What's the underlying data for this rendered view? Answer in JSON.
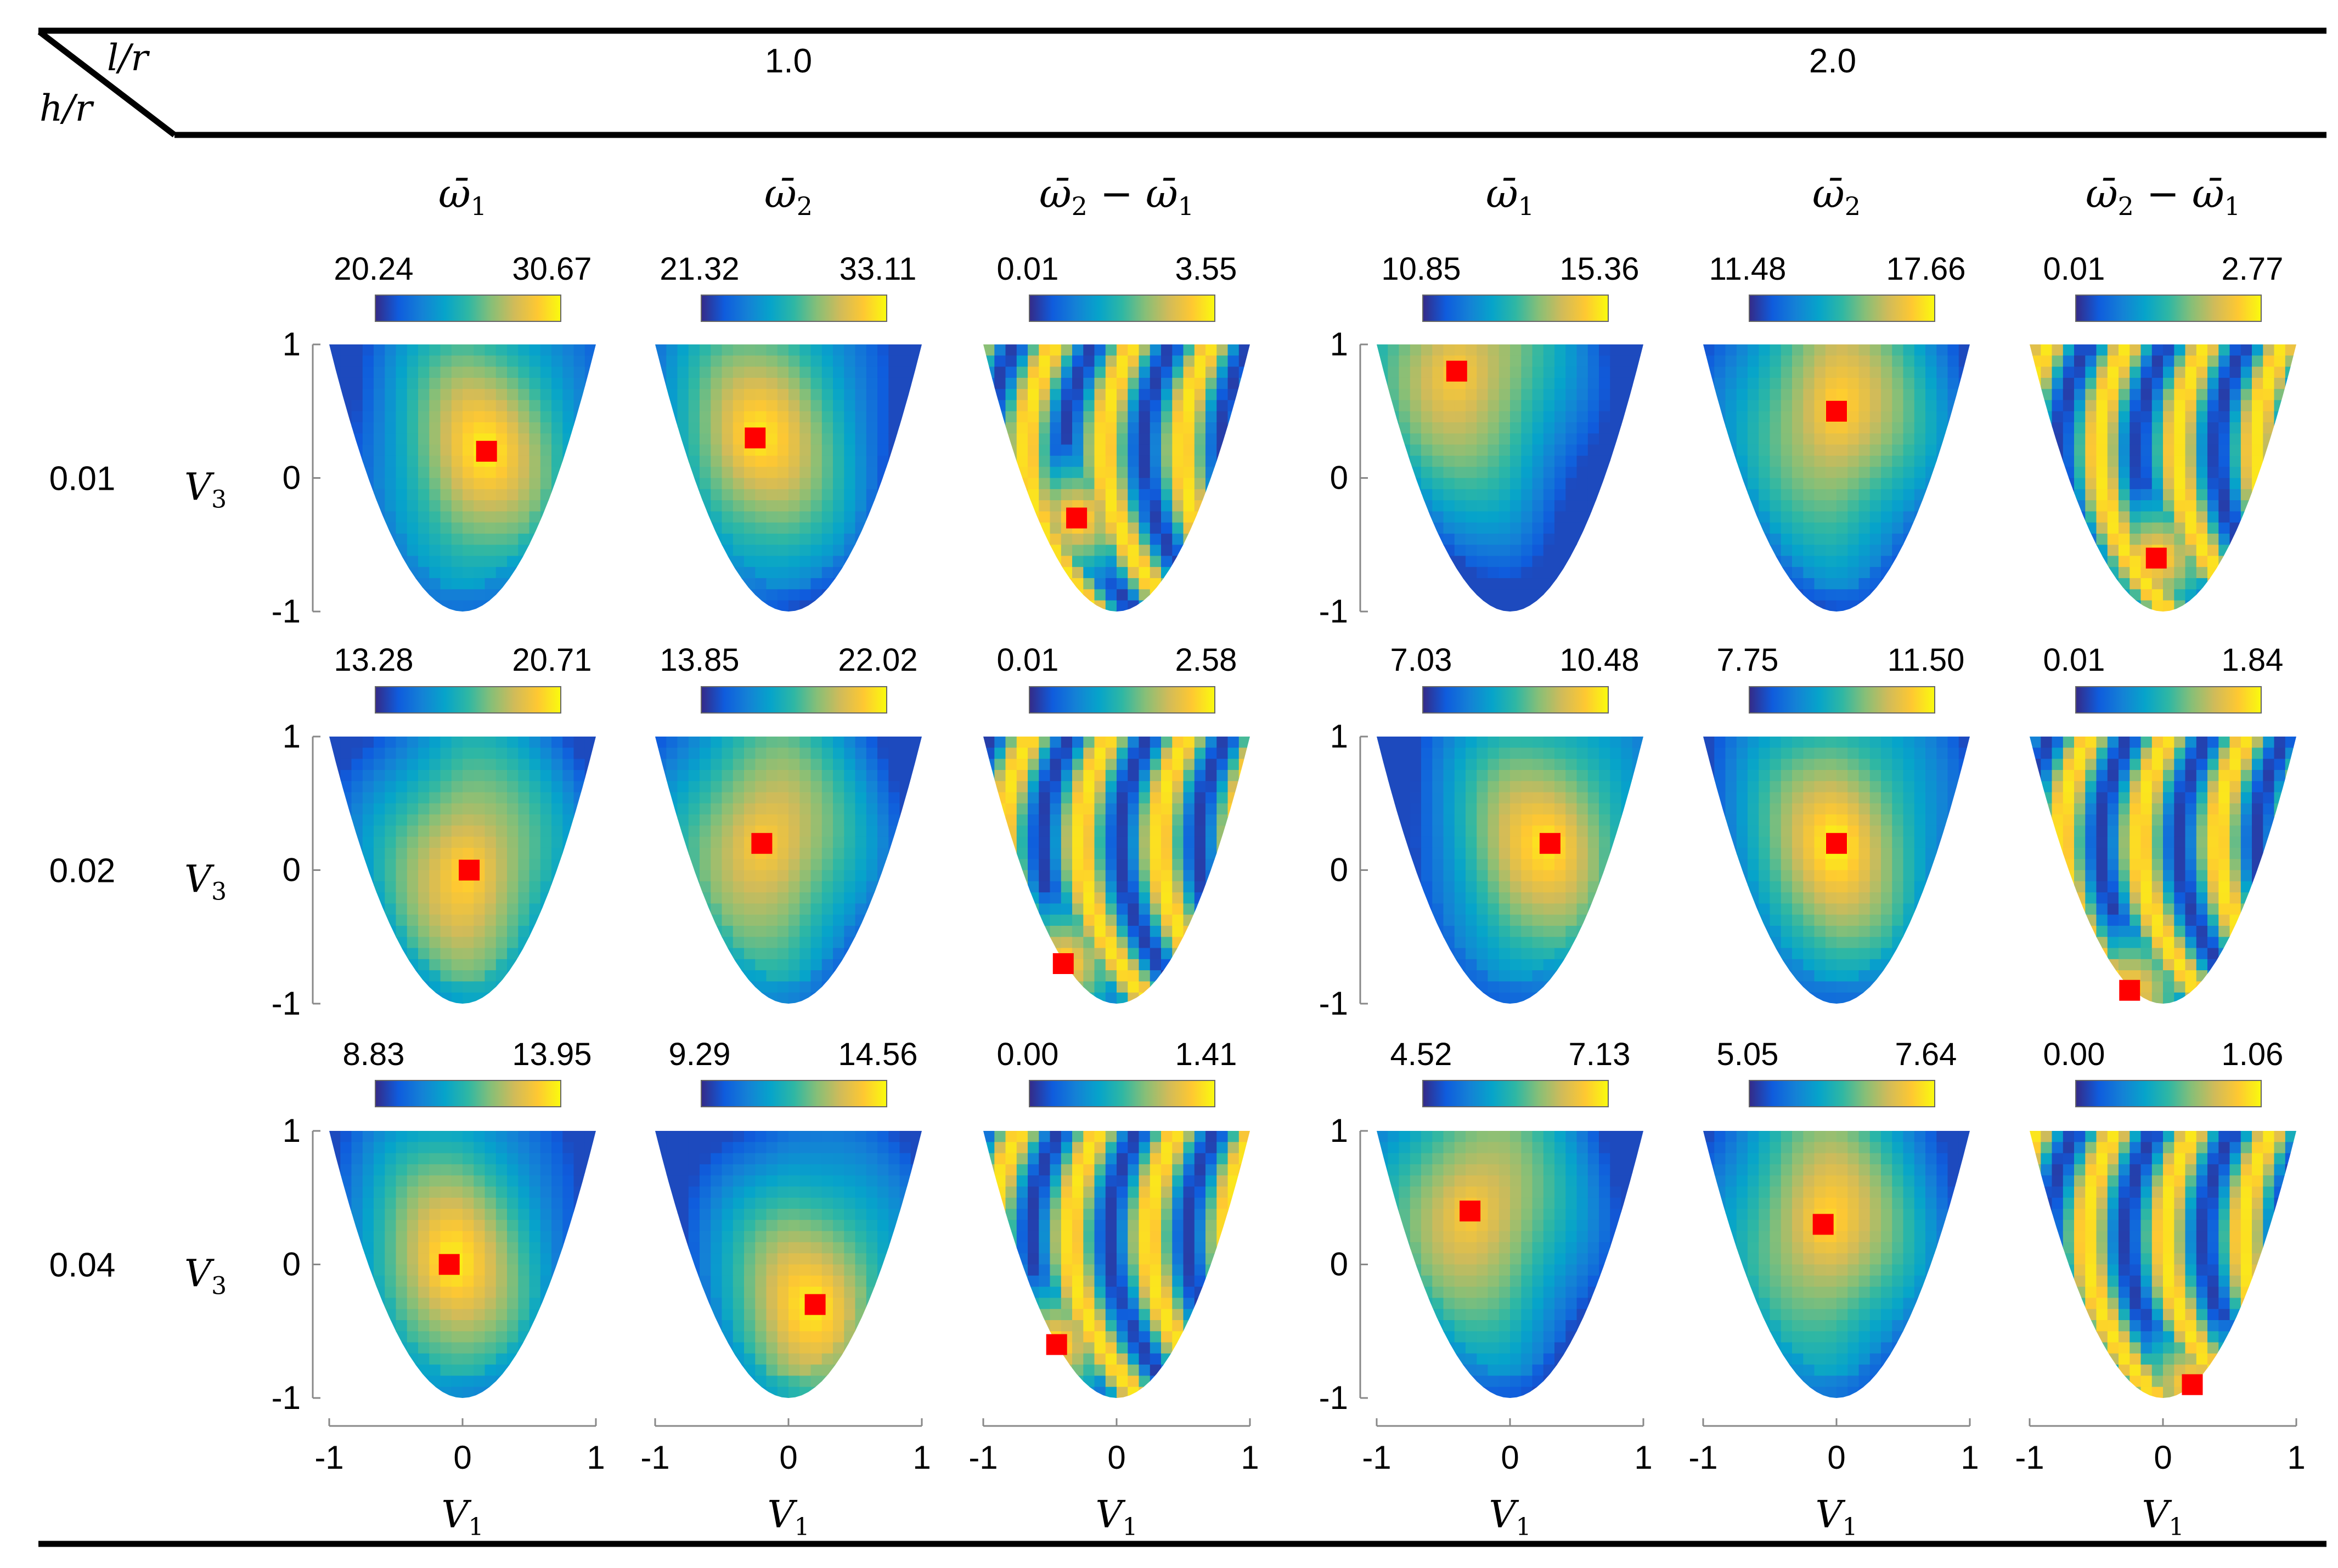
{
  "table_header": {
    "col_var": "l/r",
    "row_var": "h/r",
    "groups": [
      "1.0",
      "2.0"
    ]
  },
  "column_titles": [
    {
      "base": "ω̄",
      "sub": "1"
    },
    {
      "base": "ω̄",
      "sub": "2"
    },
    {
      "base": "ω̄",
      "sub": "2",
      "minus": " − ",
      "base2": "ω̄",
      "sub2": "1"
    },
    {
      "base": "ω̄",
      "sub": "1"
    },
    {
      "base": "ω̄",
      "sub": "2"
    },
    {
      "base": "ω̄",
      "sub": "2",
      "minus": " − ",
      "base2": "ω̄",
      "sub2": "1"
    }
  ],
  "row_labels": [
    "0.01",
    "0.02",
    "0.04"
  ],
  "axes": {
    "ylabel": {
      "base": "V",
      "sub": "3"
    },
    "xlabel": {
      "base": "V",
      "sub": "1"
    },
    "y_ticks": [
      "1",
      "0",
      "-1"
    ],
    "x_ticks": [
      "-1",
      "0",
      "1"
    ],
    "xlim": [
      -1,
      1
    ],
    "ylim": [
      -1,
      1
    ]
  },
  "colors": {
    "colormap": [
      "#352a87",
      "#0f5cdd",
      "#1481d6",
      "#06a4ca",
      "#2eb7a4",
      "#87bf77",
      "#d1bb59",
      "#fec832",
      "#f9fb0e"
    ],
    "marker": "#ff0000",
    "line": "#000000"
  },
  "chart_data": {
    "type": "heatmap",
    "domain": "parabolic region V3 >= 2*V1^2 - 1, |V1| <= 1, V3 <= 1",
    "rows": [
      {
        "h_r": "0.01",
        "panels": [
          {
            "l_r": "1.0",
            "quantity": "omega1",
            "cmin": "20.24",
            "cmax": "30.67",
            "marker": [
              0.18,
              0.2
            ]
          },
          {
            "l_r": "1.0",
            "quantity": "omega2",
            "cmin": "21.32",
            "cmax": "33.11",
            "marker": [
              -0.25,
              0.3
            ]
          },
          {
            "l_r": "1.0",
            "quantity": "omega2-omega1",
            "cmin": "0.01",
            "cmax": "3.55",
            "marker": [
              -0.3,
              -0.3
            ]
          },
          {
            "l_r": "2.0",
            "quantity": "omega1",
            "cmin": "10.85",
            "cmax": "15.36",
            "marker": [
              -0.4,
              0.8
            ]
          },
          {
            "l_r": "2.0",
            "quantity": "omega2",
            "cmin": "11.48",
            "cmax": "17.66",
            "marker": [
              0.0,
              0.5
            ]
          },
          {
            "l_r": "2.0",
            "quantity": "omega2-omega1",
            "cmin": "0.01",
            "cmax": "2.77",
            "marker": [
              -0.05,
              -0.6
            ]
          }
        ]
      },
      {
        "h_r": "0.02",
        "panels": [
          {
            "l_r": "1.0",
            "quantity": "omega1",
            "cmin": "13.28",
            "cmax": "20.71",
            "marker": [
              0.05,
              0.0
            ]
          },
          {
            "l_r": "1.0",
            "quantity": "omega2",
            "cmin": "13.85",
            "cmax": "22.02",
            "marker": [
              -0.2,
              0.2
            ]
          },
          {
            "l_r": "1.0",
            "quantity": "omega2-omega1",
            "cmin": "0.01",
            "cmax": "2.58",
            "marker": [
              -0.4,
              -0.7
            ]
          },
          {
            "l_r": "2.0",
            "quantity": "omega1",
            "cmin": "7.03",
            "cmax": "10.48",
            "marker": [
              0.3,
              0.2
            ]
          },
          {
            "l_r": "2.0",
            "quantity": "omega2",
            "cmin": "7.75",
            "cmax": "11.50",
            "marker": [
              0.0,
              0.2
            ]
          },
          {
            "l_r": "2.0",
            "quantity": "omega2-omega1",
            "cmin": "0.01",
            "cmax": "1.84",
            "marker": [
              -0.25,
              -0.9
            ]
          }
        ]
      },
      {
        "h_r": "0.04",
        "panels": [
          {
            "l_r": "1.0",
            "quantity": "omega1",
            "cmin": "8.83",
            "cmax": "13.95",
            "marker": [
              -0.1,
              0.0
            ]
          },
          {
            "l_r": "1.0",
            "quantity": "omega2",
            "cmin": "9.29",
            "cmax": "14.56",
            "marker": [
              0.2,
              -0.3
            ]
          },
          {
            "l_r": "1.0",
            "quantity": "omega2-omega1",
            "cmin": "0.00",
            "cmax": "1.41",
            "marker": [
              -0.45,
              -0.6
            ]
          },
          {
            "l_r": "2.0",
            "quantity": "omega1",
            "cmin": "4.52",
            "cmax": "7.13",
            "marker": [
              -0.3,
              0.4
            ]
          },
          {
            "l_r": "2.0",
            "quantity": "omega2",
            "cmin": "5.05",
            "cmax": "7.64",
            "marker": [
              -0.1,
              0.3
            ]
          },
          {
            "l_r": "2.0",
            "quantity": "omega2-omega1",
            "cmin": "0.00",
            "cmax": "1.06",
            "marker": [
              0.22,
              -0.9
            ]
          }
        ]
      }
    ]
  }
}
